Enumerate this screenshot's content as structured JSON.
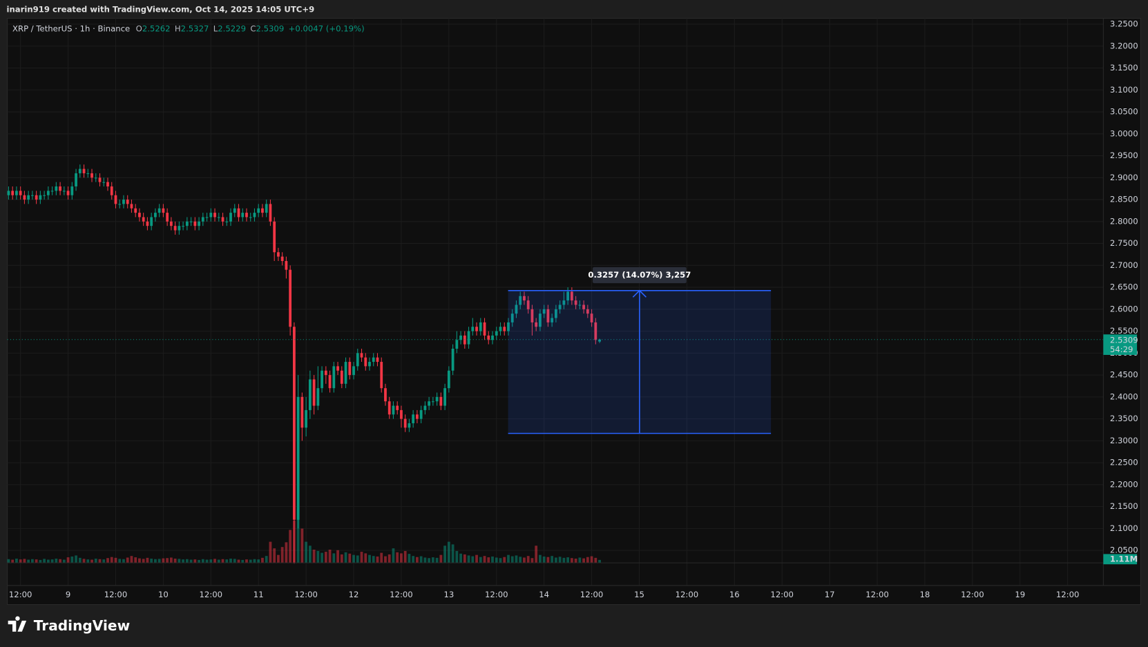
{
  "header": {
    "attribution": "inarin919 created with TradingView.com, Oct 14, 2025 14:05 UTC+9",
    "logo": "TradingView"
  },
  "chart_data": {
    "type": "candlestick",
    "symbol": "XRP / TetherUS · 1h · Binance",
    "ohlc_labels": [
      "O",
      "H",
      "L",
      "C"
    ],
    "change": "+0.0047 (+0.19%)",
    "countdown": "54:29",
    "up_color": "#089981",
    "down_color": "#f23645",
    "grid": true,
    "open": [
      2.86,
      2.87,
      2.86,
      2.87,
      2.86,
      2.85,
      2.86,
      2.86,
      2.85,
      2.86,
      2.86,
      2.87,
      2.87,
      2.88,
      2.87,
      2.87,
      2.86,
      2.88,
      2.91,
      2.92,
      2.91,
      2.91,
      2.9,
      2.9,
      2.89,
      2.89,
      2.88,
      2.86,
      2.84,
      2.84,
      2.85,
      2.84,
      2.83,
      2.82,
      2.81,
      2.8,
      2.79,
      2.81,
      2.82,
      2.83,
      2.82,
      2.8,
      2.79,
      2.78,
      2.79,
      2.79,
      2.8,
      2.8,
      2.79,
      2.8,
      2.81,
      2.81,
      2.82,
      2.81,
      2.81,
      2.8,
      2.8,
      2.82,
      2.83,
      2.81,
      2.82,
      2.81,
      2.81,
      2.82,
      2.83,
      2.82,
      2.84,
      2.8,
      2.73,
      2.72,
      2.71,
      2.69,
      2.56,
      2.12,
      2.4,
      2.33,
      2.37,
      2.44,
      2.38,
      2.42,
      2.46,
      2.45,
      2.42,
      2.47,
      2.46,
      2.43,
      2.48,
      2.45,
      2.47,
      2.5,
      2.49,
      2.47,
      2.48,
      2.49,
      2.48,
      2.42,
      2.39,
      2.36,
      2.38,
      2.37,
      2.35,
      2.33,
      2.34,
      2.36,
      2.35,
      2.37,
      2.38,
      2.39,
      2.39,
      2.4,
      2.38,
      2.42,
      2.46,
      2.51,
      2.53,
      2.54,
      2.52,
      2.55,
      2.56,
      2.55,
      2.57,
      2.54,
      2.53,
      2.54,
      2.55,
      2.56,
      2.55,
      2.57,
      2.59,
      2.61,
      2.63,
      2.62,
      2.6,
      2.57,
      2.56,
      2.59,
      2.6,
      2.57,
      2.58,
      2.6,
      2.61,
      2.62,
      2.64,
      2.62,
      2.61,
      2.61,
      2.6,
      2.59,
      2.57,
      2.5262
    ],
    "high": [
      2.88,
      2.88,
      2.88,
      2.88,
      2.87,
      2.87,
      2.87,
      2.87,
      2.87,
      2.87,
      2.88,
      2.88,
      2.89,
      2.89,
      2.88,
      2.88,
      2.89,
      2.92,
      2.93,
      2.93,
      2.92,
      2.92,
      2.91,
      2.91,
      2.9,
      2.9,
      2.89,
      2.87,
      2.85,
      2.86,
      2.86,
      2.85,
      2.84,
      2.83,
      2.82,
      2.81,
      2.82,
      2.83,
      2.84,
      2.84,
      2.83,
      2.81,
      2.8,
      2.8,
      2.8,
      2.81,
      2.81,
      2.81,
      2.81,
      2.82,
      2.82,
      2.83,
      2.83,
      2.82,
      2.82,
      2.81,
      2.83,
      2.84,
      2.84,
      2.83,
      2.83,
      2.82,
      2.83,
      2.84,
      2.84,
      2.85,
      2.85,
      2.81,
      2.74,
      2.73,
      2.72,
      2.7,
      2.57,
      2.45,
      2.41,
      2.4,
      2.46,
      2.45,
      2.47,
      2.47,
      2.47,
      2.46,
      2.48,
      2.48,
      2.47,
      2.49,
      2.49,
      2.48,
      2.51,
      2.51,
      2.5,
      2.49,
      2.5,
      2.5,
      2.49,
      2.43,
      2.4,
      2.39,
      2.39,
      2.38,
      2.36,
      2.35,
      2.37,
      2.37,
      2.38,
      2.39,
      2.4,
      2.4,
      2.41,
      2.41,
      2.43,
      2.47,
      2.52,
      2.55,
      2.55,
      2.55,
      2.56,
      2.58,
      2.57,
      2.58,
      2.58,
      2.55,
      2.55,
      2.56,
      2.57,
      2.57,
      2.58,
      2.6,
      2.62,
      2.64,
      2.64,
      2.63,
      2.61,
      2.58,
      2.6,
      2.61,
      2.61,
      2.59,
      2.61,
      2.62,
      2.64,
      2.65,
      2.65,
      2.63,
      2.62,
      2.62,
      2.61,
      2.6,
      2.58,
      2.5327
    ],
    "low": [
      2.85,
      2.85,
      2.85,
      2.85,
      2.84,
      2.84,
      2.85,
      2.84,
      2.84,
      2.85,
      2.85,
      2.86,
      2.86,
      2.86,
      2.86,
      2.85,
      2.85,
      2.87,
      2.9,
      2.9,
      2.9,
      2.89,
      2.89,
      2.88,
      2.88,
      2.87,
      2.85,
      2.83,
      2.83,
      2.83,
      2.83,
      2.82,
      2.81,
      2.8,
      2.79,
      2.78,
      2.78,
      2.8,
      2.81,
      2.81,
      2.79,
      2.78,
      2.77,
      2.77,
      2.78,
      2.78,
      2.79,
      2.78,
      2.78,
      2.79,
      2.8,
      2.8,
      2.8,
      2.8,
      2.79,
      2.79,
      2.79,
      2.81,
      2.8,
      2.8,
      2.8,
      2.8,
      2.8,
      2.81,
      2.81,
      2.81,
      2.79,
      2.71,
      2.71,
      2.7,
      2.67,
      2.54,
      2.02,
      2.1,
      2.3,
      2.31,
      2.35,
      2.36,
      2.37,
      2.41,
      2.43,
      2.41,
      2.41,
      2.45,
      2.42,
      2.42,
      2.44,
      2.44,
      2.46,
      2.48,
      2.46,
      2.46,
      2.47,
      2.47,
      2.41,
      2.38,
      2.35,
      2.35,
      2.36,
      2.33,
      2.32,
      2.32,
      2.33,
      2.34,
      2.34,
      2.36,
      2.37,
      2.38,
      2.38,
      2.37,
      2.37,
      2.41,
      2.45,
      2.5,
      2.52,
      2.51,
      2.51,
      2.54,
      2.54,
      2.54,
      2.53,
      2.52,
      2.52,
      2.53,
      2.54,
      2.54,
      2.54,
      2.56,
      2.58,
      2.6,
      2.61,
      2.59,
      2.54,
      2.55,
      2.55,
      2.58,
      2.56,
      2.56,
      2.57,
      2.59,
      2.6,
      2.61,
      2.61,
      2.6,
      2.6,
      2.59,
      2.58,
      2.56,
      2.52,
      2.5229
    ],
    "close": [
      2.87,
      2.86,
      2.87,
      2.86,
      2.85,
      2.86,
      2.86,
      2.85,
      2.86,
      2.86,
      2.87,
      2.87,
      2.88,
      2.87,
      2.87,
      2.86,
      2.88,
      2.91,
      2.92,
      2.91,
      2.91,
      2.9,
      2.9,
      2.89,
      2.89,
      2.88,
      2.86,
      2.84,
      2.84,
      2.85,
      2.84,
      2.83,
      2.82,
      2.81,
      2.8,
      2.79,
      2.81,
      2.82,
      2.83,
      2.82,
      2.8,
      2.79,
      2.78,
      2.79,
      2.79,
      2.8,
      2.8,
      2.79,
      2.8,
      2.81,
      2.81,
      2.82,
      2.81,
      2.81,
      2.8,
      2.8,
      2.82,
      2.83,
      2.81,
      2.82,
      2.81,
      2.81,
      2.82,
      2.83,
      2.82,
      2.84,
      2.8,
      2.73,
      2.72,
      2.71,
      2.69,
      2.56,
      2.12,
      2.4,
      2.33,
      2.37,
      2.44,
      2.38,
      2.42,
      2.46,
      2.45,
      2.42,
      2.47,
      2.46,
      2.43,
      2.48,
      2.45,
      2.47,
      2.5,
      2.49,
      2.47,
      2.48,
      2.49,
      2.48,
      2.42,
      2.39,
      2.36,
      2.38,
      2.37,
      2.35,
      2.33,
      2.34,
      2.36,
      2.35,
      2.37,
      2.38,
      2.39,
      2.39,
      2.4,
      2.38,
      2.42,
      2.46,
      2.51,
      2.53,
      2.54,
      2.52,
      2.55,
      2.56,
      2.55,
      2.57,
      2.54,
      2.53,
      2.54,
      2.55,
      2.56,
      2.55,
      2.57,
      2.59,
      2.61,
      2.63,
      2.62,
      2.6,
      2.57,
      2.56,
      2.59,
      2.6,
      2.57,
      2.58,
      2.6,
      2.61,
      2.62,
      2.64,
      2.62,
      2.61,
      2.61,
      2.6,
      2.59,
      2.57,
      2.53,
      2.5309
    ],
    "volume": {
      "values": [
        1.4,
        1.2,
        1.6,
        1.3,
        1.5,
        1.2,
        1.4,
        1.3,
        1.1,
        1.5,
        1.2,
        1.3,
        1.6,
        1.4,
        1.2,
        2.1,
        2.4,
        2.8,
        1.9,
        1.5,
        1.3,
        1.2,
        1.6,
        1.4,
        1.3,
        1.8,
        2.2,
        1.9,
        1.5,
        1.4,
        2.0,
        2.6,
        2.1,
        1.7,
        1.5,
        1.9,
        1.6,
        1.4,
        1.5,
        1.7,
        1.8,
        2.0,
        1.6,
        1.5,
        1.3,
        1.4,
        1.2,
        1.3,
        1.1,
        1.4,
        1.2,
        1.3,
        1.5,
        1.2,
        1.4,
        1.3,
        1.6,
        1.5,
        1.2,
        1.1,
        1.3,
        1.2,
        1.4,
        1.3,
        1.9,
        2.6,
        8.0,
        5.5,
        3.0,
        6.0,
        7.8,
        12.5,
        16.0,
        20.5,
        13.0,
        8.0,
        6.5,
        5.0,
        4.5,
        3.8,
        4.2,
        5.0,
        3.6,
        4.8,
        3.2,
        4.0,
        3.5,
        3.0,
        2.8,
        4.2,
        3.6,
        3.0,
        2.6,
        2.4,
        3.8,
        2.5,
        3.2,
        5.5,
        4.0,
        3.6,
        4.5,
        3.4,
        2.6,
        2.2,
        2.5,
        2.0,
        1.8,
        2.1,
        1.9,
        3.0,
        6.5,
        8.0,
        7.0,
        4.5,
        3.5,
        3.2,
        2.8,
        2.5,
        3.0,
        2.2,
        2.6,
        2.1,
        2.4,
        2.0,
        1.8,
        2.2,
        3.0,
        2.5,
        2.8,
        2.3,
        2.0,
        2.6,
        1.8,
        6.5,
        3.0,
        2.4,
        2.2,
        2.6,
        2.0,
        2.3,
        1.9,
        2.1,
        1.8,
        1.6,
        2.0,
        1.7,
        2.2,
        2.5,
        1.9,
        1.11
      ],
      "last_label": "1.11M",
      "ylim": [
        0,
        25
      ]
    },
    "measure": {
      "from": 2.3169,
      "to": 2.6426,
      "label": "0.3257 (14.07%) 3,257",
      "color": "#2962ff"
    },
    "ylim": [
      1.97,
      3.2634
    ],
    "yticks": [
      {
        "value": 2.05,
        "label": "2.0500"
      },
      {
        "value": 2.1,
        "label": "2.1000"
      },
      {
        "value": 2.15,
        "label": "2.1500"
      },
      {
        "value": 2.2,
        "label": "2.2000"
      },
      {
        "value": 2.25,
        "label": "2.2500"
      },
      {
        "value": 2.3,
        "label": "2.3000"
      },
      {
        "value": 2.35,
        "label": "2.3500"
      },
      {
        "value": 2.4,
        "label": "2.4000"
      },
      {
        "value": 2.45,
        "label": "2.4500"
      },
      {
        "value": 2.5,
        "label": "2.5000"
      },
      {
        "value": 2.55,
        "label": "2.5500"
      },
      {
        "value": 2.6,
        "label": "2.6000"
      },
      {
        "value": 2.65,
        "label": "2.6500"
      },
      {
        "value": 2.7,
        "label": "2.7000"
      },
      {
        "value": 2.75,
        "label": "2.7500"
      },
      {
        "value": 2.8,
        "label": "2.8000"
      },
      {
        "value": 2.85,
        "label": "2.8500"
      },
      {
        "value": 2.9,
        "label": "2.9000"
      },
      {
        "value": 2.95,
        "label": "2.9500"
      },
      {
        "value": 3.0,
        "label": "3.0000"
      },
      {
        "value": 3.05,
        "label": "3.0500"
      },
      {
        "value": 3.1,
        "label": "3.1000"
      },
      {
        "value": 3.15,
        "label": "3.1500"
      },
      {
        "value": 3.2,
        "label": "3.2000"
      },
      {
        "value": 3.25,
        "label": "3.2500"
      }
    ],
    "xlim": [
      -0.32,
      276
    ],
    "xticks": [
      {
        "value": 3,
        "label": "12:00"
      },
      {
        "value": 15,
        "label": "9"
      },
      {
        "value": 27,
        "label": "12:00"
      },
      {
        "value": 39,
        "label": "10"
      },
      {
        "value": 51,
        "label": "12:00"
      },
      {
        "value": 63,
        "label": "11"
      },
      {
        "value": 75,
        "label": "12:00"
      },
      {
        "value": 87,
        "label": "12"
      },
      {
        "value": 99,
        "label": "12:00"
      },
      {
        "value": 111,
        "label": "13"
      },
      {
        "value": 123,
        "label": "12:00"
      },
      {
        "value": 135,
        "label": "14"
      },
      {
        "value": 147,
        "label": "12:00"
      },
      {
        "value": 159,
        "label": "15"
      },
      {
        "value": 171,
        "label": "12:00"
      },
      {
        "value": 183,
        "label": "16"
      },
      {
        "value": 195,
        "label": "12:00"
      },
      {
        "value": 207,
        "label": "17"
      },
      {
        "value": 219,
        "label": "12:00"
      },
      {
        "value": 231,
        "label": "18"
      },
      {
        "value": 243,
        "label": "12:00"
      },
      {
        "value": 255,
        "label": "19"
      },
      {
        "value": 267,
        "label": "12:00"
      }
    ]
  }
}
